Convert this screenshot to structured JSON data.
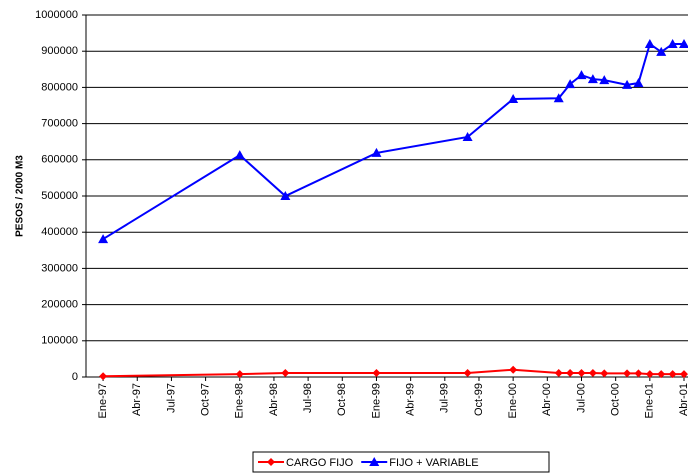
{
  "chart_data": {
    "type": "line",
    "y_label": "PESOS / 2000 M3",
    "x": [
      0,
      12,
      16,
      24,
      32,
      36,
      40,
      41,
      42,
      43,
      44,
      46,
      47,
      48,
      49,
      50,
      51
    ],
    "xlim": [
      -1.5,
      51.35
    ],
    "xticks": [
      {
        "value": 0,
        "label": "Ene-97"
      },
      {
        "value": 3,
        "label": "Abr-97"
      },
      {
        "value": 6,
        "label": "Jul-97"
      },
      {
        "value": 9,
        "label": "Oct-97"
      },
      {
        "value": 12,
        "label": "Ene-98"
      },
      {
        "value": 15,
        "label": "Abr-98"
      },
      {
        "value": 18,
        "label": "Jul-98"
      },
      {
        "value": 21,
        "label": "Oct-98"
      },
      {
        "value": 24,
        "label": "Ene-99"
      },
      {
        "value": 27,
        "label": "Abr-99"
      },
      {
        "value": 30,
        "label": "Jul-99"
      },
      {
        "value": 33,
        "label": "Oct-99"
      },
      {
        "value": 36,
        "label": "Ene-00"
      },
      {
        "value": 39,
        "label": "Abr-00"
      },
      {
        "value": 42,
        "label": "Jul-00"
      },
      {
        "value": 45,
        "label": "Oct-00"
      },
      {
        "value": 48,
        "label": "Ene-01"
      },
      {
        "value": 51,
        "label": "Abr-01"
      }
    ],
    "ylim": [
      0,
      1000000
    ],
    "yticks": [
      0,
      100000,
      200000,
      300000,
      400000,
      500000,
      600000,
      700000,
      800000,
      900000,
      1000000
    ],
    "grid": true,
    "legend": "bottom",
    "series": [
      {
        "name": "CARGO FIJO",
        "color": "#ff0000",
        "marker": "diamond",
        "values": [
          2000,
          8000,
          11000,
          11000,
          11000,
          20000,
          11000,
          11000,
          11000,
          11000,
          10000,
          10000,
          10000,
          8000,
          8000,
          8000,
          8000
        ]
      },
      {
        "name": "FIJO + VARIABLE",
        "color": "#0000ff",
        "marker": "triangle",
        "values": [
          381000,
          613000,
          500000,
          619000,
          663000,
          768000,
          770000,
          809000,
          834000,
          823000,
          820000,
          807000,
          812000,
          920000,
          898000,
          920000,
          920000
        ]
      }
    ]
  }
}
